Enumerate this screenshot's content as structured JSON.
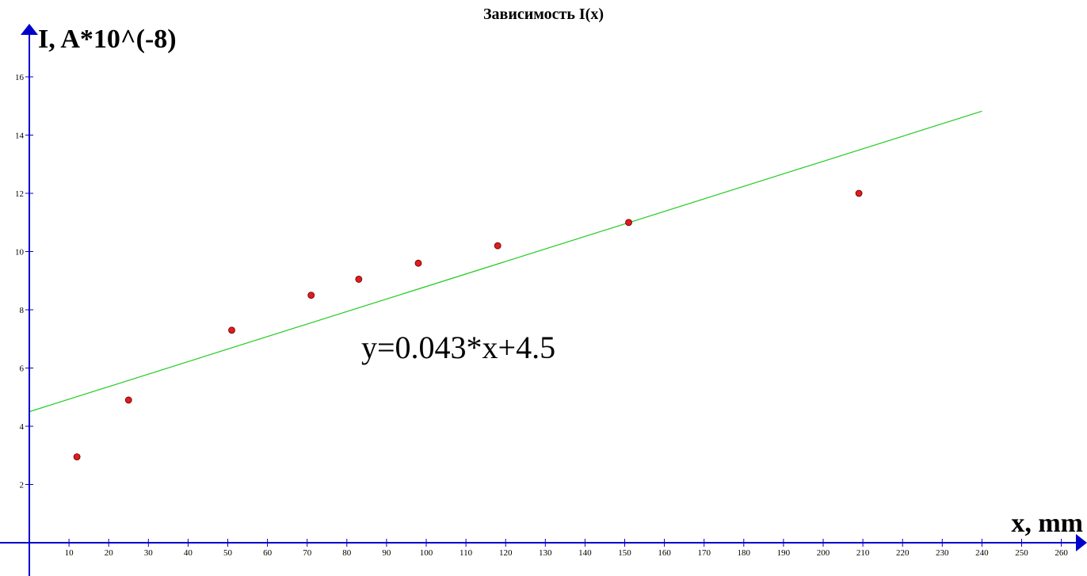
{
  "chart_data": {
    "type": "scatter",
    "title": "Зависимость I(x)",
    "xlabel": "x, mm",
    "ylabel": "I, A*10^(-8)",
    "xlim": [
      0,
      265
    ],
    "ylim": [
      0,
      17
    ],
    "x_ticks": [
      10,
      20,
      30,
      40,
      50,
      60,
      70,
      80,
      90,
      100,
      110,
      120,
      130,
      140,
      150,
      160,
      170,
      180,
      190,
      200,
      210,
      220,
      230,
      240,
      250,
      260
    ],
    "y_ticks": [
      2,
      4,
      6,
      8,
      10,
      12,
      14,
      16
    ],
    "grid": false,
    "series": [
      {
        "marker_color": "#e31b1b",
        "points": [
          {
            "x": 12,
            "y": 2.95
          },
          {
            "x": 25,
            "y": 4.9
          },
          {
            "x": 51,
            "y": 7.3
          },
          {
            "x": 71,
            "y": 8.5
          },
          {
            "x": 83,
            "y": 9.05
          },
          {
            "x": 98,
            "y": 9.6
          },
          {
            "x": 118,
            "y": 10.2
          },
          {
            "x": 151,
            "y": 11.0
          },
          {
            "x": 209,
            "y": 12.0
          }
        ]
      }
    ],
    "fit_line": {
      "slope": 0.043,
      "intercept": 4.5,
      "x_range": [
        0,
        240
      ],
      "color": "#22cc22",
      "equation_label": "y=0.043*x+4.5"
    },
    "axis_color": "#0000cc"
  }
}
